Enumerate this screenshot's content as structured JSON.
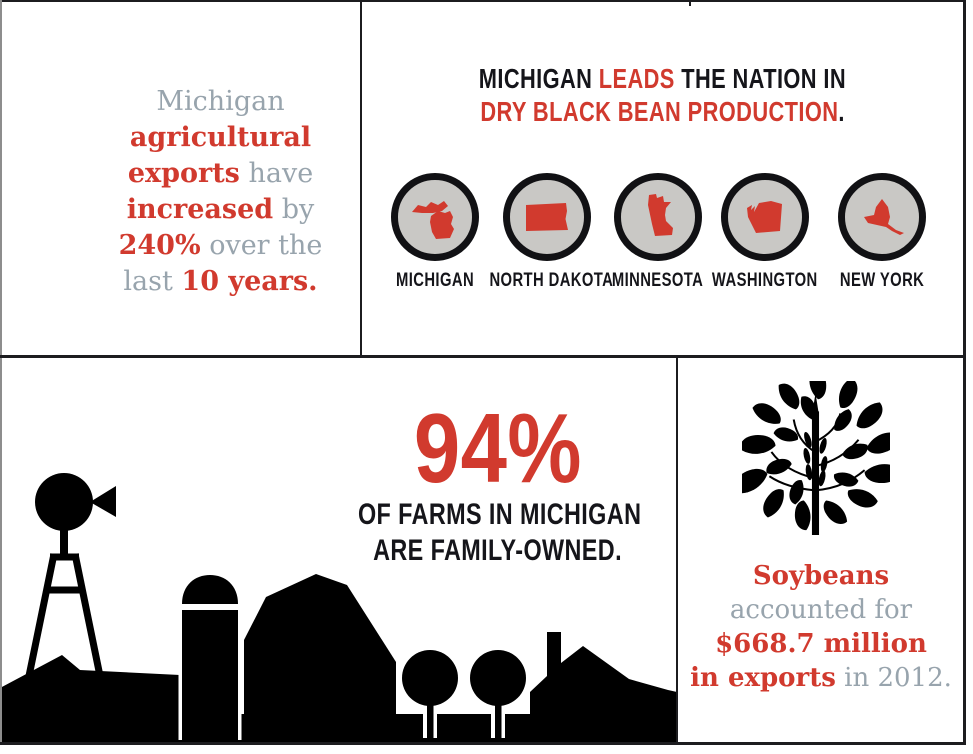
{
  "palette": {
    "red": "#d13a2e",
    "gray": "#98a4ad",
    "black": "#15151a",
    "circle_gray": "#c9c8c5"
  },
  "exports_panel": {
    "lines": [
      [
        {
          "t": "Michigan",
          "s": "gray"
        }
      ],
      [
        {
          "t": "agricultural",
          "s": "red"
        }
      ],
      [
        {
          "t": "exports",
          "s": "red"
        },
        {
          "t": " have",
          "s": "gray"
        }
      ],
      [
        {
          "t": "increased",
          "s": "red"
        },
        {
          "t": " by",
          "s": "gray"
        }
      ],
      [
        {
          "t": "240%",
          "s": "red"
        },
        {
          "t": " over the",
          "s": "gray"
        }
      ],
      [
        {
          "t": "last ",
          "s": "gray"
        },
        {
          "t": "10 years.",
          "s": "red"
        }
      ]
    ]
  },
  "beans_panel": {
    "heading_line1": [
      {
        "t": "MICHIGAN ",
        "s": "black"
      },
      {
        "t": "LEADS",
        "s": "red"
      },
      {
        "t": " THE NATION IN",
        "s": "black"
      }
    ],
    "heading_line2": [
      {
        "t": "DRY BLACK BEAN PRODUCTION",
        "s": "red"
      },
      {
        "t": ".",
        "s": "black"
      }
    ],
    "states": [
      {
        "name": "MICHIGAN",
        "icon": "michigan-state-icon"
      },
      {
        "name": "NORTH DAKOTA",
        "icon": "north-dakota-state-icon"
      },
      {
        "name": "MINNESOTA",
        "icon": "minnesota-state-icon"
      },
      {
        "name": "WASHINGTON",
        "icon": "washington-state-icon"
      },
      {
        "name": "NEW YORK",
        "icon": "new-york-state-icon"
      }
    ]
  },
  "farms_panel": {
    "stat": "94%",
    "caption_line1": "OF FARMS IN MICHIGAN",
    "caption_line2": "ARE FAMILY-OWNED.",
    "illustration": "farm-silhouette (windmill, silo, barn, trees, house)"
  },
  "soybeans_panel": {
    "illustration": "soybean-plant-silhouette",
    "lines": [
      [
        {
          "t": "Soybeans",
          "s": "red"
        }
      ],
      [
        {
          "t": "accounted for",
          "s": "gray"
        }
      ],
      [
        {
          "t": "$668.7 million",
          "s": "red"
        }
      ],
      [
        {
          "t": "in exports",
          "s": "red"
        },
        {
          "t": " in 2012.",
          "s": "gray"
        }
      ]
    ]
  }
}
